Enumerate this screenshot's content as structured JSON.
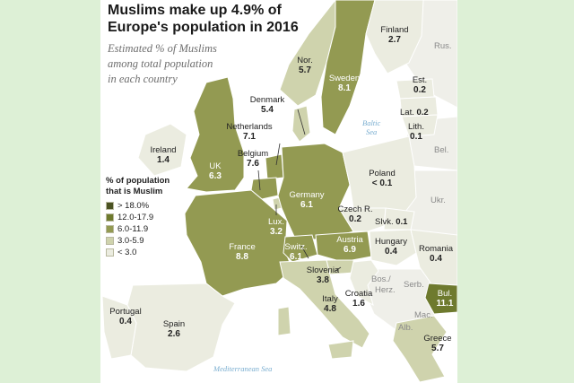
{
  "header": {
    "title_line1": "Muslims make up 4.9% of",
    "title_line2": "Europe's population in 2016",
    "subtitle_line1": "Estimated % of Muslims",
    "subtitle_line2": "among total population",
    "subtitle_line3": "in each country"
  },
  "legend": {
    "title_line1": "% of population",
    "title_line2": "that is Muslim",
    "items": [
      {
        "label": "> 18.0%",
        "color": "#4a5222"
      },
      {
        "label": "12.0-17.9",
        "color": "#6e7a2e"
      },
      {
        "label": "6.0-11.9",
        "color": "#939a52"
      },
      {
        "label": "3.0-5.9",
        "color": "#cfd3ad"
      },
      {
        "label": "< 3.0",
        "color": "#ebece0"
      }
    ]
  },
  "countries": {
    "finland": {
      "name": "Finland",
      "value": "2.7"
    },
    "norway": {
      "name": "Nor.",
      "value": "5.7"
    },
    "sweden": {
      "name": "Sweden",
      "value": "8.1"
    },
    "estonia": {
      "name": "Est.",
      "value": "0.2"
    },
    "latvia": {
      "name": "Lat.",
      "value": "0.2"
    },
    "lithuania": {
      "name": "Lith.",
      "value": "0.1"
    },
    "denmark": {
      "name": "Denmark",
      "value": "5.4"
    },
    "netherlands": {
      "name": "Netherlands",
      "value": "7.1"
    },
    "belgium": {
      "name": "Belgium",
      "value": "7.6"
    },
    "ireland": {
      "name": "Ireland",
      "value": "1.4"
    },
    "uk": {
      "name": "UK",
      "value": "6.3"
    },
    "germany": {
      "name": "Germany",
      "value": "6.1"
    },
    "poland": {
      "name": "Poland",
      "value": "< 0.1"
    },
    "czech": {
      "name": "Czech R.",
      "value": "0.2"
    },
    "slovakia": {
      "name": "Slvk.",
      "value": "0.1"
    },
    "luxembourg": {
      "name": "Lux.",
      "value": "3.2"
    },
    "switzerland": {
      "name": "Switz.",
      "value": "6.1"
    },
    "austria": {
      "name": "Austria",
      "value": "6.9"
    },
    "hungary": {
      "name": "Hungary",
      "value": "0.4"
    },
    "romania": {
      "name": "Romania",
      "value": "0.4"
    },
    "france": {
      "name": "France",
      "value": "8.8"
    },
    "slovenia": {
      "name": "Slovenia",
      "value": "3.8"
    },
    "croatia": {
      "name": "Croatia",
      "value": "1.6"
    },
    "italy": {
      "name": "Italy",
      "value": "4.8"
    },
    "bulgaria": {
      "name": "Bul.",
      "value": "11.1"
    },
    "portugal": {
      "name": "Portugal",
      "value": "0.4"
    },
    "spain": {
      "name": "Spain",
      "value": "2.6"
    },
    "greece": {
      "name": "Greece",
      "value": "5.7"
    }
  },
  "neighbors": {
    "russia": "Rus.",
    "belarus": "Bel.",
    "ukraine": "Ukr.",
    "bosnia": "Bos./",
    "herz": "Herz.",
    "serbia": "Serb.",
    "macedonia": "Mac.",
    "albania": "Alb."
  },
  "seas": {
    "baltic_line1": "Baltic",
    "baltic_line2": "Sea",
    "mediterranean": "Mediterranean Sea"
  }
}
